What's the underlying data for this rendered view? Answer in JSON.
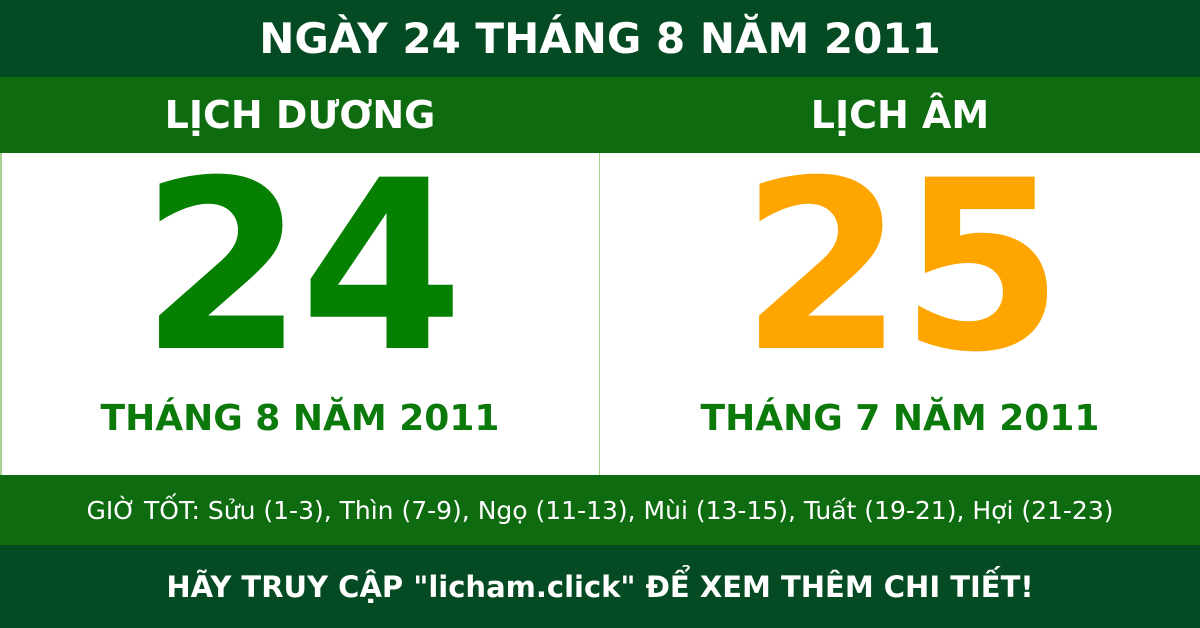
{
  "title": "NGÀY 24 THÁNG 8 NĂM 2011",
  "solar": {
    "label": "LỊCH DƯƠNG",
    "day": "24",
    "month_year": "THÁNG 8 NĂM 2011",
    "color": "#058000"
  },
  "lunar": {
    "label": "LỊCH ÂM",
    "day": "25",
    "month_year": "THÁNG 7 NĂM 2011",
    "color": "#FFA500"
  },
  "good_hours": "GIỜ TỐT: Sửu (1-3), Thìn (7-9), Ngọ (11-13), Mùi (13-15), Tuất (19-21), Hợi (21-23)",
  "footer": "HÃY TRUY CẬP \"licham.click\" ĐỂ XEM THÊM CHI TIẾT!"
}
